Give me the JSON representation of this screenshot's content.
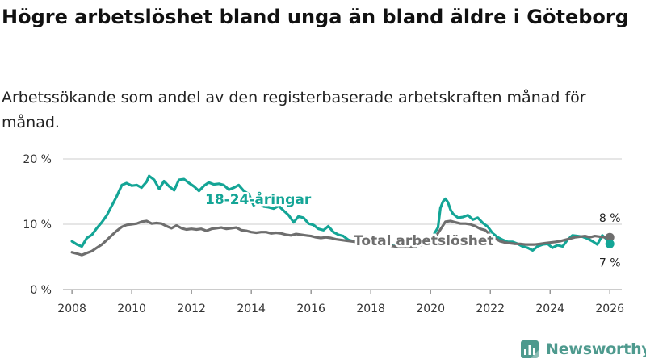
{
  "header": {
    "title": "Högre arbetslöshet bland unga än bland äldre i Göteborg",
    "subtitle": "Arbetssökande som andel av den registerbaserade arbetskraften månad för månad."
  },
  "brand": {
    "name": "Newsworthy"
  },
  "colors": {
    "youth": "#14a596",
    "total": "#6e6e6e",
    "grid": "#cccccc",
    "brand": "#4e9a8e"
  },
  "chart_data": {
    "type": "line",
    "title": "Högre arbetslöshet bland unga än bland äldre i Göteborg",
    "subtitle": "Arbetssökande som andel av den registerbaserade arbetskraften månad för månad.",
    "xlabel": "",
    "ylabel": "",
    "xlim": [
      2007.7,
      2026.4
    ],
    "ylim": [
      0,
      20
    ],
    "grid": true,
    "x_ticks": [
      2008,
      2010,
      2012,
      2014,
      2016,
      2018,
      2020,
      2022,
      2024,
      2026
    ],
    "x_tick_labels": [
      "2008",
      "2010",
      "2012",
      "2014",
      "2016",
      "2018",
      "2020",
      "2022",
      "2024",
      "2026"
    ],
    "y_ticks": [
      0,
      10,
      20
    ],
    "y_tick_labels": [
      "0 %",
      "10 %",
      "20 %"
    ],
    "series": [
      {
        "name": "18-24-åringar",
        "label": "18-24-åringar",
        "end_label": "7 %",
        "end_value": 7,
        "points": [
          [
            2008.0,
            7.4
          ],
          [
            2008.17,
            6.9
          ],
          [
            2008.33,
            6.6
          ],
          [
            2008.5,
            7.9
          ],
          [
            2008.67,
            8.4
          ],
          [
            2008.83,
            9.4
          ],
          [
            2009.0,
            10.3
          ],
          [
            2009.17,
            11.4
          ],
          [
            2009.33,
            12.8
          ],
          [
            2009.5,
            14.3
          ],
          [
            2009.67,
            16.0
          ],
          [
            2009.83,
            16.3
          ],
          [
            2010.0,
            15.9
          ],
          [
            2010.17,
            16.0
          ],
          [
            2010.33,
            15.6
          ],
          [
            2010.5,
            16.5
          ],
          [
            2010.58,
            17.4
          ],
          [
            2010.75,
            16.8
          ],
          [
            2010.92,
            15.4
          ],
          [
            2011.08,
            16.6
          ],
          [
            2011.25,
            15.8
          ],
          [
            2011.42,
            15.2
          ],
          [
            2011.58,
            16.8
          ],
          [
            2011.75,
            16.9
          ],
          [
            2011.92,
            16.3
          ],
          [
            2012.08,
            15.8
          ],
          [
            2012.25,
            15.1
          ],
          [
            2012.42,
            15.9
          ],
          [
            2012.58,
            16.4
          ],
          [
            2012.75,
            16.1
          ],
          [
            2012.92,
            16.2
          ],
          [
            2013.08,
            16.0
          ],
          [
            2013.25,
            15.3
          ],
          [
            2013.42,
            15.6
          ],
          [
            2013.58,
            16.0
          ],
          [
            2013.75,
            15.1
          ],
          [
            2013.92,
            14.6
          ],
          [
            2014.08,
            12.9
          ],
          [
            2014.25,
            13.3
          ],
          [
            2014.42,
            12.7
          ],
          [
            2014.58,
            12.6
          ],
          [
            2014.75,
            12.4
          ],
          [
            2014.92,
            12.8
          ],
          [
            2015.08,
            12.1
          ],
          [
            2015.25,
            11.4
          ],
          [
            2015.42,
            10.3
          ],
          [
            2015.58,
            11.2
          ],
          [
            2015.75,
            11.0
          ],
          [
            2015.92,
            10.1
          ],
          [
            2016.08,
            9.9
          ],
          [
            2016.25,
            9.3
          ],
          [
            2016.42,
            9.1
          ],
          [
            2016.58,
            9.7
          ],
          [
            2016.75,
            8.8
          ],
          [
            2016.92,
            8.4
          ],
          [
            2017.08,
            8.2
          ],
          [
            2017.25,
            7.6
          ],
          [
            2017.42,
            7.4
          ],
          [
            2017.58,
            7.3
          ],
          [
            2017.75,
            7.2
          ],
          [
            2017.92,
            7.1
          ],
          [
            2018.08,
            7.0
          ],
          [
            2018.25,
            6.9
          ],
          [
            2018.42,
            6.8
          ],
          [
            2018.58,
            6.9
          ],
          [
            2018.75,
            6.7
          ],
          [
            2018.92,
            6.6
          ],
          [
            2019.08,
            6.6
          ],
          [
            2019.25,
            6.5
          ],
          [
            2019.42,
            6.5
          ],
          [
            2019.58,
            6.7
          ],
          [
            2019.75,
            7.0
          ],
          [
            2019.92,
            7.4
          ],
          [
            2020.08,
            8.2
          ],
          [
            2020.25,
            9.5
          ],
          [
            2020.33,
            12.5
          ],
          [
            2020.42,
            13.5
          ],
          [
            2020.5,
            13.9
          ],
          [
            2020.58,
            13.4
          ],
          [
            2020.67,
            12.2
          ],
          [
            2020.75,
            11.6
          ],
          [
            2020.92,
            11.0
          ],
          [
            2021.08,
            11.1
          ],
          [
            2021.25,
            11.4
          ],
          [
            2021.42,
            10.7
          ],
          [
            2021.58,
            11.0
          ],
          [
            2021.75,
            10.2
          ],
          [
            2021.92,
            9.6
          ],
          [
            2022.08,
            8.6
          ],
          [
            2022.25,
            8.0
          ],
          [
            2022.42,
            7.6
          ],
          [
            2022.58,
            7.3
          ],
          [
            2022.75,
            7.3
          ],
          [
            2022.92,
            7.0
          ],
          [
            2023.08,
            6.6
          ],
          [
            2023.25,
            6.4
          ],
          [
            2023.42,
            6.0
          ],
          [
            2023.58,
            6.6
          ],
          [
            2023.75,
            6.9
          ],
          [
            2023.92,
            7.0
          ],
          [
            2024.08,
            6.4
          ],
          [
            2024.25,
            6.8
          ],
          [
            2024.42,
            6.6
          ],
          [
            2024.58,
            7.6
          ],
          [
            2024.75,
            8.3
          ],
          [
            2024.92,
            8.2
          ],
          [
            2025.08,
            8.1
          ],
          [
            2025.25,
            7.8
          ],
          [
            2025.42,
            7.4
          ],
          [
            2025.58,
            6.9
          ],
          [
            2025.75,
            8.3
          ],
          [
            2025.92,
            7.6
          ],
          [
            2026.0,
            7.0
          ]
        ]
      },
      {
        "name": "Total arbetslöshet",
        "label": "Total arbetslöshet",
        "end_label": "8 %",
        "end_value": 8,
        "points": [
          [
            2008.0,
            5.7
          ],
          [
            2008.17,
            5.5
          ],
          [
            2008.33,
            5.3
          ],
          [
            2008.5,
            5.6
          ],
          [
            2008.67,
            5.9
          ],
          [
            2008.83,
            6.4
          ],
          [
            2009.0,
            6.9
          ],
          [
            2009.17,
            7.6
          ],
          [
            2009.33,
            8.3
          ],
          [
            2009.5,
            9.0
          ],
          [
            2009.67,
            9.6
          ],
          [
            2009.83,
            9.9
          ],
          [
            2010.0,
            10.0
          ],
          [
            2010.17,
            10.1
          ],
          [
            2010.33,
            10.4
          ],
          [
            2010.5,
            10.5
          ],
          [
            2010.67,
            10.1
          ],
          [
            2010.83,
            10.2
          ],
          [
            2011.0,
            10.1
          ],
          [
            2011.17,
            9.7
          ],
          [
            2011.33,
            9.4
          ],
          [
            2011.5,
            9.8
          ],
          [
            2011.67,
            9.4
          ],
          [
            2011.83,
            9.2
          ],
          [
            2012.0,
            9.3
          ],
          [
            2012.17,
            9.2
          ],
          [
            2012.33,
            9.3
          ],
          [
            2012.5,
            9.0
          ],
          [
            2012.67,
            9.3
          ],
          [
            2012.83,
            9.4
          ],
          [
            2013.0,
            9.5
          ],
          [
            2013.17,
            9.3
          ],
          [
            2013.33,
            9.4
          ],
          [
            2013.5,
            9.5
          ],
          [
            2013.67,
            9.1
          ],
          [
            2013.83,
            9.0
          ],
          [
            2014.0,
            8.8
          ],
          [
            2014.17,
            8.7
          ],
          [
            2014.33,
            8.8
          ],
          [
            2014.5,
            8.8
          ],
          [
            2014.67,
            8.6
          ],
          [
            2014.83,
            8.7
          ],
          [
            2015.0,
            8.6
          ],
          [
            2015.17,
            8.4
          ],
          [
            2015.33,
            8.3
          ],
          [
            2015.5,
            8.5
          ],
          [
            2015.67,
            8.4
          ],
          [
            2015.83,
            8.3
          ],
          [
            2016.0,
            8.2
          ],
          [
            2016.17,
            8.0
          ],
          [
            2016.33,
            7.9
          ],
          [
            2016.5,
            8.0
          ],
          [
            2016.67,
            7.9
          ],
          [
            2016.83,
            7.7
          ],
          [
            2017.0,
            7.6
          ],
          [
            2017.17,
            7.5
          ],
          [
            2017.33,
            7.4
          ],
          [
            2017.5,
            7.3
          ],
          [
            2017.67,
            7.2
          ],
          [
            2017.83,
            7.1
          ],
          [
            2018.0,
            7.0
          ],
          [
            2018.17,
            6.9
          ],
          [
            2018.33,
            6.8
          ],
          [
            2018.5,
            6.8
          ],
          [
            2018.67,
            6.7
          ],
          [
            2018.83,
            6.6
          ],
          [
            2019.0,
            6.6
          ],
          [
            2019.17,
            6.5
          ],
          [
            2019.33,
            6.5
          ],
          [
            2019.5,
            6.6
          ],
          [
            2019.67,
            6.8
          ],
          [
            2019.83,
            7.0
          ],
          [
            2020.0,
            7.3
          ],
          [
            2020.17,
            8.1
          ],
          [
            2020.33,
            9.2
          ],
          [
            2020.5,
            10.4
          ],
          [
            2020.67,
            10.5
          ],
          [
            2020.83,
            10.3
          ],
          [
            2021.0,
            10.1
          ],
          [
            2021.17,
            10.1
          ],
          [
            2021.33,
            10.0
          ],
          [
            2021.5,
            9.7
          ],
          [
            2021.67,
            9.3
          ],
          [
            2021.83,
            9.1
          ],
          [
            2022.0,
            8.4
          ],
          [
            2022.17,
            7.8
          ],
          [
            2022.33,
            7.4
          ],
          [
            2022.5,
            7.2
          ],
          [
            2022.67,
            7.1
          ],
          [
            2022.83,
            7.0
          ],
          [
            2023.0,
            7.0
          ],
          [
            2023.17,
            6.9
          ],
          [
            2023.33,
            6.9
          ],
          [
            2023.5,
            6.9
          ],
          [
            2023.67,
            7.0
          ],
          [
            2023.83,
            7.1
          ],
          [
            2024.0,
            7.2
          ],
          [
            2024.17,
            7.3
          ],
          [
            2024.33,
            7.4
          ],
          [
            2024.5,
            7.6
          ],
          [
            2024.67,
            7.8
          ],
          [
            2024.83,
            8.0
          ],
          [
            2025.0,
            8.1
          ],
          [
            2025.17,
            8.2
          ],
          [
            2025.33,
            8.0
          ],
          [
            2025.5,
            8.2
          ],
          [
            2025.67,
            8.1
          ],
          [
            2025.83,
            8.0
          ],
          [
            2026.0,
            8.0
          ]
        ]
      }
    ]
  }
}
